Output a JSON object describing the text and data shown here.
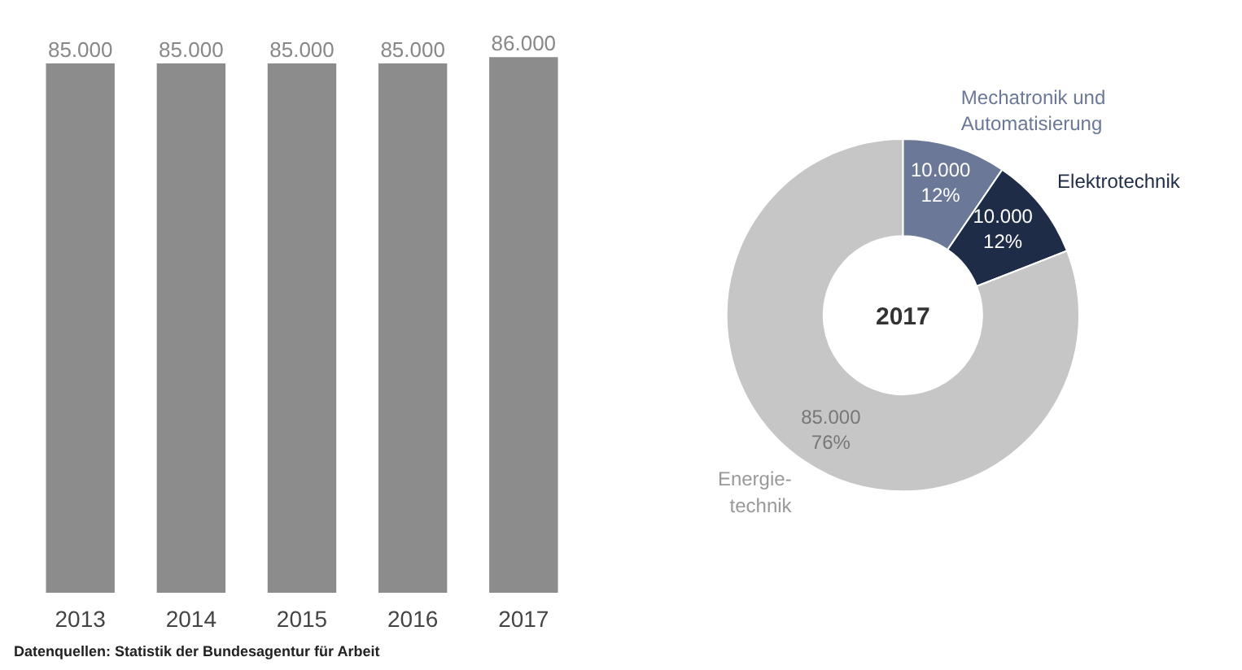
{
  "chart_data": [
    {
      "type": "bar",
      "categories": [
        "2013",
        "2014",
        "2015",
        "2016",
        "2017"
      ],
      "values": [
        85000,
        85000,
        85000,
        85000,
        86000
      ],
      "color": "#8c8c8c",
      "value_labels": [
        "85.000",
        "85.000",
        "85.000",
        "85.000",
        "86.000"
      ],
      "grid": false,
      "tick_labels": "x",
      "annotations": [
        "Datenquellen: Statistik der Bundesagentur für Arbeit"
      ]
    },
    {
      "type": "donut",
      "title": "2017",
      "categories": [
        "Mechatronik und\nAutomatisierung",
        "Elektrotechnik",
        "Energie-\ntechnik"
      ],
      "values": [
        10000,
        10000,
        85000
      ],
      "colors": [
        "#6b7897",
        "#1e2c47",
        "#c6c6c6"
      ],
      "value_labels": [
        "10.000\n12%",
        "10.000\n12%",
        "85.000\n76%"
      ],
      "legend": false
    }
  ]
}
